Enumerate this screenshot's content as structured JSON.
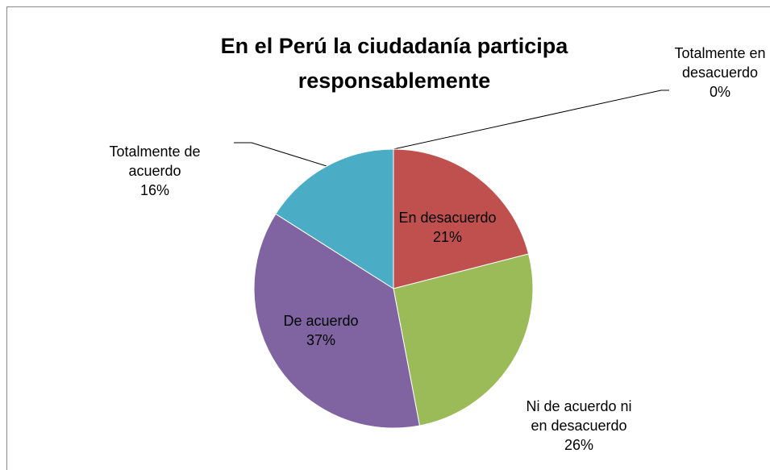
{
  "chart_data": {
    "type": "pie",
    "title": "En el Perú la ciudadanía participa responsablemente",
    "categories": [
      "Totalmente en desacuerdo",
      "En desacuerdo",
      "Ni de acuerdo ni en desacuerdo",
      "De acuerdo",
      "Totalmente de acuerdo"
    ],
    "values": [
      0,
      21,
      26,
      37,
      16
    ],
    "value_labels": [
      "0%",
      "21%",
      "26%",
      "37%",
      "16%"
    ],
    "colors": [
      "#4F81BD",
      "#C0504D",
      "#9BBB59",
      "#8064A2",
      "#4BACC6"
    ]
  }
}
